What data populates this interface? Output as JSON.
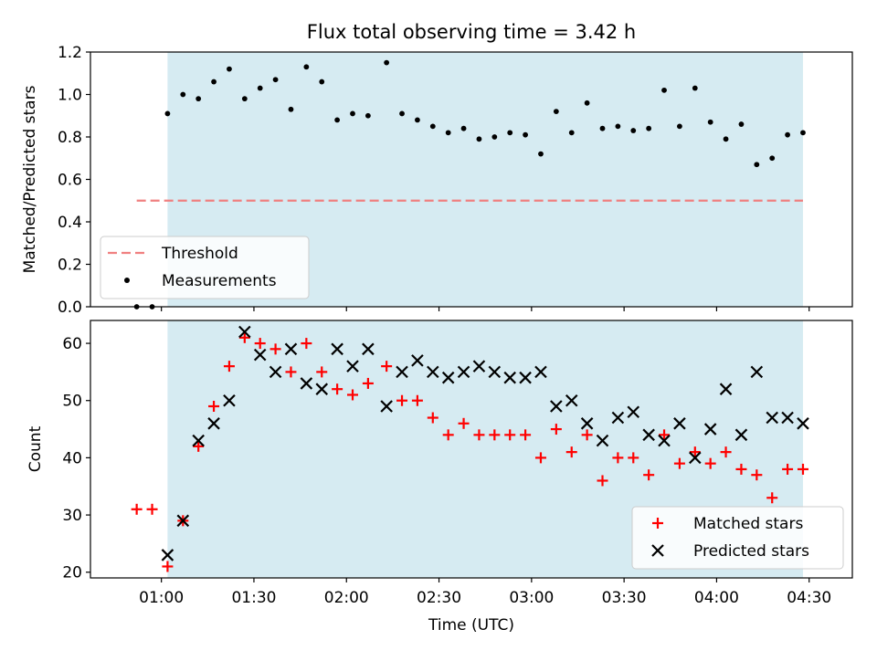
{
  "title": "Flux total observing time = 3.42 h",
  "chart_data": [
    {
      "type": "scatter",
      "ylabel": "Matched/Predicted stars",
      "xlabel": "",
      "ylim": [
        0,
        1.2
      ],
      "yticks": [
        "0.0",
        "0.2",
        "0.4",
        "0.6",
        "0.8",
        "1.0",
        "1.2"
      ],
      "ytick_values": [
        0,
        0.2,
        0.4,
        0.6,
        0.8,
        1.0,
        1.2
      ],
      "xlim": [
        "00:37",
        "04:44"
      ],
      "xtick_values": [
        "01:00",
        "01:30",
        "02:00",
        "02:30",
        "03:00",
        "03:30",
        "04:00",
        "04:30"
      ],
      "shaded_region": [
        "01:02",
        "04:28"
      ],
      "threshold": {
        "name": "Threshold",
        "value": 0.5,
        "x_range": [
          "00:52",
          "04:28"
        ],
        "color": "#f08080"
      },
      "series": [
        {
          "name": "Measurements",
          "color": "#000000",
          "marker": "dot",
          "x": [
            "00:52",
            "00:57",
            "01:02",
            "01:07",
            "01:12",
            "01:17",
            "01:22",
            "01:27",
            "01:32",
            "01:37",
            "01:42",
            "01:47",
            "01:52",
            "01:57",
            "02:02",
            "02:07",
            "02:13",
            "02:18",
            "02:23",
            "02:28",
            "02:33",
            "02:38",
            "02:43",
            "02:48",
            "02:53",
            "02:58",
            "03:03",
            "03:08",
            "03:13",
            "03:18",
            "03:23",
            "03:28",
            "03:33",
            "03:38",
            "03:43",
            "03:48",
            "03:53",
            "03:58",
            "04:03",
            "04:08",
            "04:13",
            "04:18",
            "04:23",
            "04:28"
          ],
          "values": [
            0.0,
            0.0,
            0.91,
            1.0,
            0.98,
            1.06,
            1.12,
            0.98,
            1.03,
            1.07,
            0.93,
            1.13,
            1.06,
            0.88,
            0.91,
            0.9,
            1.15,
            0.91,
            0.88,
            0.85,
            0.82,
            0.84,
            0.79,
            0.8,
            0.82,
            0.81,
            0.72,
            0.92,
            0.82,
            0.96,
            0.84,
            0.85,
            0.83,
            0.84,
            1.02,
            0.85,
            1.03,
            0.87,
            0.79,
            0.86,
            0.67,
            0.7,
            0.81,
            0.82
          ]
        }
      ],
      "legend": {
        "position": "bottom-left",
        "entries": [
          "Threshold",
          "Measurements"
        ]
      }
    },
    {
      "type": "scatter",
      "ylabel": "Count",
      "xlabel": "Time (UTC)",
      "ylim": [
        19,
        64
      ],
      "yticks": [
        "20",
        "30",
        "40",
        "50",
        "60"
      ],
      "ytick_values": [
        20,
        30,
        40,
        50,
        60
      ],
      "xlim": [
        "00:37",
        "04:44"
      ],
      "xticks": [
        "01:00",
        "01:30",
        "02:00",
        "02:30",
        "03:00",
        "03:30",
        "04:00",
        "04:30"
      ],
      "xtick_values": [
        "01:00",
        "01:30",
        "02:00",
        "02:30",
        "03:00",
        "03:30",
        "04:00",
        "04:30"
      ],
      "shaded_region": [
        "01:02",
        "04:28"
      ],
      "series": [
        {
          "name": "Matched stars",
          "color": "#ff0000",
          "marker": "plus",
          "x": [
            "00:52",
            "00:57",
            "01:02",
            "01:07",
            "01:12",
            "01:17",
            "01:22",
            "01:27",
            "01:32",
            "01:37",
            "01:42",
            "01:47",
            "01:52",
            "01:57",
            "02:02",
            "02:07",
            "02:13",
            "02:18",
            "02:23",
            "02:28",
            "02:33",
            "02:38",
            "02:43",
            "02:48",
            "02:53",
            "02:58",
            "03:03",
            "03:08",
            "03:13",
            "03:18",
            "03:23",
            "03:28",
            "03:33",
            "03:38",
            "03:43",
            "03:48",
            "03:53",
            "03:58",
            "04:03",
            "04:08",
            "04:13",
            "04:18",
            "04:23",
            "04:28"
          ],
          "values": [
            31,
            31,
            21,
            29,
            42,
            49,
            56,
            61,
            60,
            59,
            55,
            60,
            55,
            52,
            51,
            53,
            56,
            50,
            50,
            47,
            44,
            46,
            44,
            44,
            44,
            44,
            40,
            45,
            41,
            44,
            36,
            40,
            40,
            37,
            44,
            39,
            41,
            39,
            41,
            38,
            37,
            33,
            38,
            38
          ]
        },
        {
          "name": "Predicted stars",
          "color": "#000000",
          "marker": "x",
          "x": [
            "01:02",
            "01:07",
            "01:12",
            "01:17",
            "01:22",
            "01:27",
            "01:32",
            "01:37",
            "01:42",
            "01:47",
            "01:52",
            "01:57",
            "02:02",
            "02:07",
            "02:13",
            "02:18",
            "02:23",
            "02:28",
            "02:33",
            "02:38",
            "02:43",
            "02:48",
            "02:53",
            "02:58",
            "03:03",
            "03:08",
            "03:13",
            "03:18",
            "03:23",
            "03:28",
            "03:33",
            "03:38",
            "03:43",
            "03:48",
            "03:53",
            "03:58",
            "04:03",
            "04:08",
            "04:13",
            "04:18",
            "04:23",
            "04:28"
          ],
          "values": [
            23,
            29,
            43,
            46,
            50,
            62,
            58,
            55,
            59,
            53,
            52,
            59,
            56,
            59,
            49,
            55,
            57,
            55,
            54,
            55,
            56,
            55,
            54,
            54,
            55,
            49,
            50,
            46,
            43,
            47,
            48,
            44,
            43,
            46,
            40,
            45,
            52,
            44,
            55,
            47,
            47,
            46
          ]
        }
      ],
      "legend": {
        "position": "bottom-right",
        "entries": [
          "Matched stars",
          "Predicted stars"
        ]
      }
    }
  ]
}
